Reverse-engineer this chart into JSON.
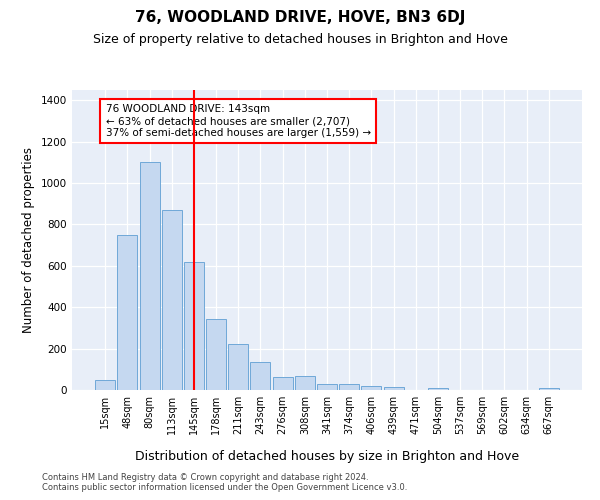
{
  "title": "76, WOODLAND DRIVE, HOVE, BN3 6DJ",
  "subtitle": "Size of property relative to detached houses in Brighton and Hove",
  "xlabel": "Distribution of detached houses by size in Brighton and Hove",
  "ylabel": "Number of detached properties",
  "footer_line1": "Contains HM Land Registry data © Crown copyright and database right 2024.",
  "footer_line2": "Contains public sector information licensed under the Open Government Licence v3.0.",
  "bar_labels": [
    "15sqm",
    "48sqm",
    "80sqm",
    "113sqm",
    "145sqm",
    "178sqm",
    "211sqm",
    "243sqm",
    "276sqm",
    "308sqm",
    "341sqm",
    "374sqm",
    "406sqm",
    "439sqm",
    "471sqm",
    "504sqm",
    "537sqm",
    "569sqm",
    "602sqm",
    "634sqm",
    "667sqm"
  ],
  "bar_values": [
    50,
    750,
    1100,
    870,
    620,
    345,
    220,
    135,
    65,
    70,
    30,
    30,
    20,
    15,
    0,
    12,
    0,
    0,
    0,
    0,
    12
  ],
  "bar_color": "#c5d8f0",
  "bar_edgecolor": "#6fa8d8",
  "vline_x_index": 4,
  "vline_color": "red",
  "ylim": [
    0,
    1450
  ],
  "yticks": [
    0,
    200,
    400,
    600,
    800,
    1000,
    1200,
    1400
  ],
  "annotation_text": "76 WOODLAND DRIVE: 143sqm\n← 63% of detached houses are smaller (2,707)\n37% of semi-detached houses are larger (1,559) →",
  "annotation_box_color": "white",
  "annotation_box_edgecolor": "red",
  "plot_bg_color": "#e8eef8",
  "title_fontsize": 11,
  "subtitle_fontsize": 9,
  "axis_label_fontsize": 8.5,
  "tick_fontsize": 7,
  "annotation_fontsize": 7.5
}
